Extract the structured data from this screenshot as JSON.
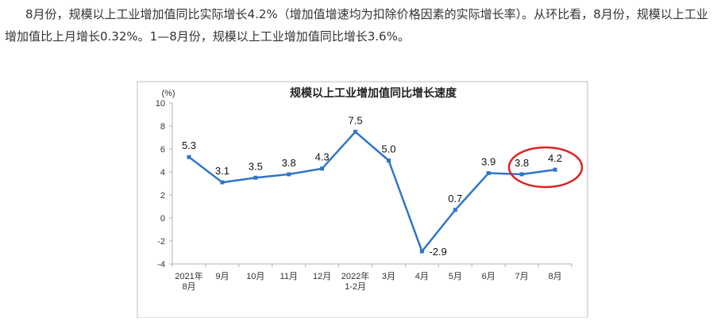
{
  "article": {
    "paragraph": "8月份，规模以上工业增加值同比实际增长4.2%（增加值增速均为扣除价格因素的实际增长率）。从环比看，8月份，规模以上工业增加值比上月增长0.32%。1—8月份，规模以上工业增加值同比增长3.6%。"
  },
  "chart_data": {
    "type": "line",
    "title": "规模以上工业增加值同比增长速度",
    "ylabel": "(%)",
    "xlabel": "",
    "ylim": [
      -4,
      10
    ],
    "yticks": [
      -4,
      -2,
      0,
      2,
      4,
      6,
      8,
      10
    ],
    "categories": [
      [
        "2021年",
        "8月"
      ],
      [
        "9月"
      ],
      [
        "10月"
      ],
      [
        "11月"
      ],
      [
        "12月"
      ],
      [
        "2022年",
        "1-2月"
      ],
      [
        "3月"
      ],
      [
        "4月"
      ],
      [
        "5月"
      ],
      [
        "6月"
      ],
      [
        "7月"
      ],
      [
        "8月"
      ]
    ],
    "values": [
      5.3,
      3.1,
      3.5,
      3.8,
      4.3,
      7.5,
      5.0,
      -2.9,
      0.7,
      3.9,
      3.8,
      4.2
    ],
    "data_labels": [
      "5.3",
      "3.1",
      "3.5",
      "3.8",
      "4.3",
      "7.5",
      "5.0",
      "-2.9",
      "0.7",
      "3.9",
      "3.8",
      "4.2"
    ],
    "grid": false,
    "line_color": "#2f75c8",
    "highlight": {
      "indices": [
        10,
        11
      ],
      "shape": "ellipse",
      "color": "#e02020"
    }
  }
}
